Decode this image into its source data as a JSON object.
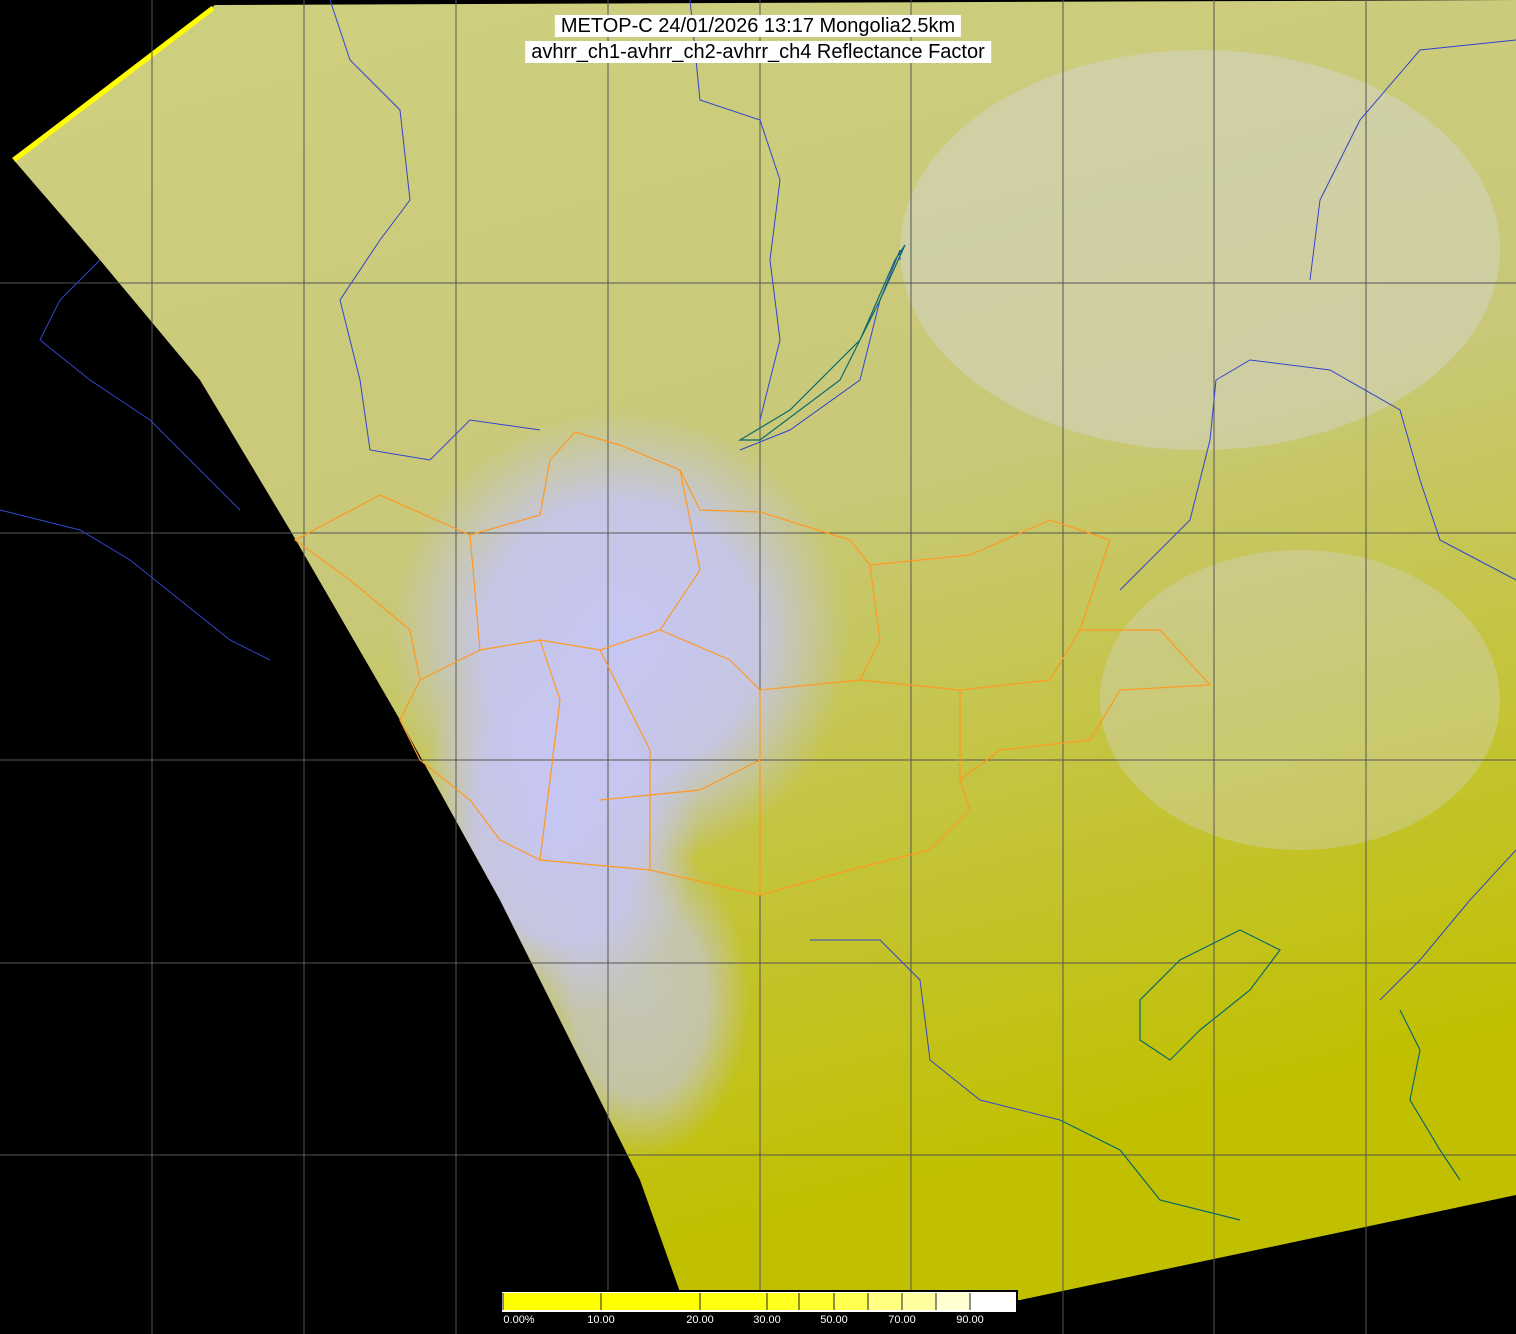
{
  "header": {
    "title_line1": "METOP-C 24/01/2026 13:17 Mongolia2.5km",
    "title_line2": "avhrr_ch1-avhrr_ch2-avhrr_ch4 Reflectance Factor"
  },
  "colors": {
    "background": "#000000",
    "land_yellow": "#c8c860",
    "cloud_lavender": "#c4c4f0",
    "graticule": "#555555",
    "country_borders": "#3344cc",
    "mongolia_borders": "#ff9922",
    "coastlines": "#0a6a6a"
  },
  "colorbar": {
    "min": 0,
    "max": 100,
    "stops": [
      {
        "value": 0,
        "color": "#ffff00"
      },
      {
        "value": 10,
        "color": "#ffff00"
      },
      {
        "value": 20,
        "color": "#ffff10"
      },
      {
        "value": 30,
        "color": "#ffff20"
      },
      {
        "value": 40,
        "color": "#ffff30"
      },
      {
        "value": 50,
        "color": "#ffff50"
      },
      {
        "value": 60,
        "color": "#ffff80"
      },
      {
        "value": 70,
        "color": "#ffffa0"
      },
      {
        "value": 80,
        "color": "#ffffd0"
      },
      {
        "value": 90,
        "color": "#ffffff"
      }
    ],
    "labels": [
      "0.00%",
      "10.00",
      "20.00",
      "30.00",
      "50.00",
      "70.00",
      "90.00"
    ],
    "label_values": [
      0,
      10,
      20,
      30,
      50,
      70,
      90
    ]
  }
}
